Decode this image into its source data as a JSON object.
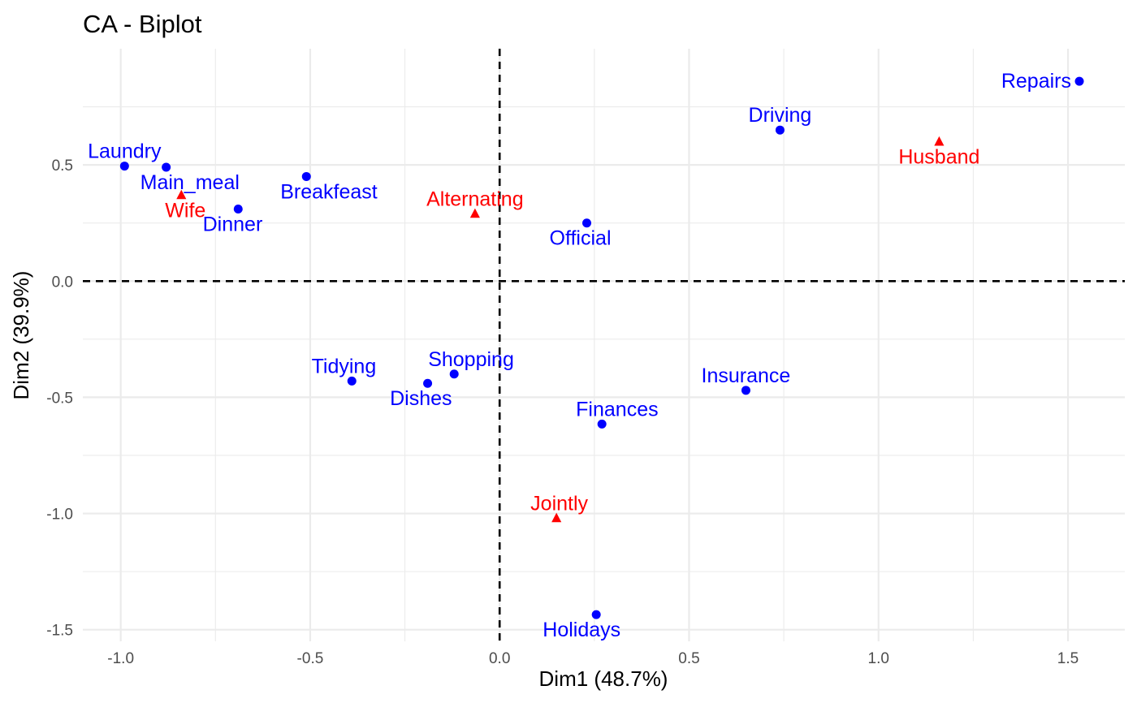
{
  "chart_data": {
    "type": "scatter",
    "title": "CA - Biplot",
    "xlabel": "Dim1 (48.7%)",
    "ylabel": "Dim2 (39.9%)",
    "xlim": [
      -1.1,
      1.65
    ],
    "ylim": [
      -1.55,
      1.0
    ],
    "x_ticks": [
      {
        "value": -1.0,
        "label": "-1.0"
      },
      {
        "value": -0.5,
        "label": "-0.5"
      },
      {
        "value": 0.0,
        "label": "0.0"
      },
      {
        "value": 0.5,
        "label": "0.5"
      },
      {
        "value": 1.0,
        "label": "1.0"
      },
      {
        "value": 1.5,
        "label": "1.5"
      }
    ],
    "y_ticks": [
      {
        "value": 0.5,
        "label": "0.5"
      },
      {
        "value": 0.0,
        "label": "0.0"
      },
      {
        "value": -0.5,
        "label": "-0.5"
      },
      {
        "value": -1.0,
        "label": "-1.0"
      },
      {
        "value": -1.5,
        "label": "-1.5"
      }
    ],
    "grid": true,
    "reference_lines": {
      "x": 0,
      "y": 0,
      "style": "dashed"
    },
    "colors": {
      "rows": "#0000ff",
      "cols": "#ff0000",
      "grid": "#ebebeb",
      "reference": "#000000"
    },
    "series": [
      {
        "marker": "circle",
        "color": "#0000ff",
        "points": [
          {
            "label": "Laundry",
            "x": -0.99,
            "y": 0.495,
            "anchor": "middle",
            "dy": -1
          },
          {
            "label": "Main_meal",
            "x": -0.88,
            "y": 0.49,
            "anchor": "start",
            "dy": 1
          },
          {
            "label": "Dinner",
            "x": -0.69,
            "y": 0.31,
            "anchor": "end",
            "dy": 1
          },
          {
            "label": "Breakfeast",
            "x": -0.51,
            "y": 0.45,
            "anchor": "start",
            "dy": 1
          },
          {
            "label": "Tidying",
            "x": -0.39,
            "y": -0.43,
            "anchor": "end",
            "dy": -1
          },
          {
            "label": "Dishes",
            "x": -0.19,
            "y": -0.44,
            "anchor": "end",
            "dy": 1
          },
          {
            "label": "Shopping",
            "x": -0.12,
            "y": -0.4,
            "anchor": "start",
            "dy": -1
          },
          {
            "label": "Official",
            "x": 0.23,
            "y": 0.25,
            "anchor": "end",
            "dy": 1
          },
          {
            "label": "Driving",
            "x": 0.74,
            "y": 0.65,
            "anchor": "middle",
            "dy": -1
          },
          {
            "label": "Finances",
            "x": 0.27,
            "y": -0.615,
            "anchor": "start",
            "dy": -1
          },
          {
            "label": "Insurance",
            "x": 0.65,
            "y": -0.47,
            "anchor": "middle",
            "dy": -1
          },
          {
            "label": "Repairs",
            "x": 1.53,
            "y": 0.86,
            "anchor": "end",
            "dy": 0
          },
          {
            "label": "Holidays",
            "x": 0.255,
            "y": -1.435,
            "anchor": "end",
            "dy": 1
          }
        ]
      },
      {
        "marker": "triangle",
        "color": "#ff0000",
        "points": [
          {
            "label": "Wife",
            "x": -0.84,
            "y": 0.37,
            "anchor": "end",
            "dy": 1
          },
          {
            "label": "Alternating",
            "x": -0.065,
            "y": 0.29,
            "anchor": "middle",
            "dy": -1
          },
          {
            "label": "Jointly",
            "x": 0.15,
            "y": -1.02,
            "anchor": "start",
            "dy": -1
          },
          {
            "label": "Husband",
            "x": 1.16,
            "y": 0.6,
            "anchor": "middle",
            "dy": 1
          }
        ]
      }
    ]
  }
}
